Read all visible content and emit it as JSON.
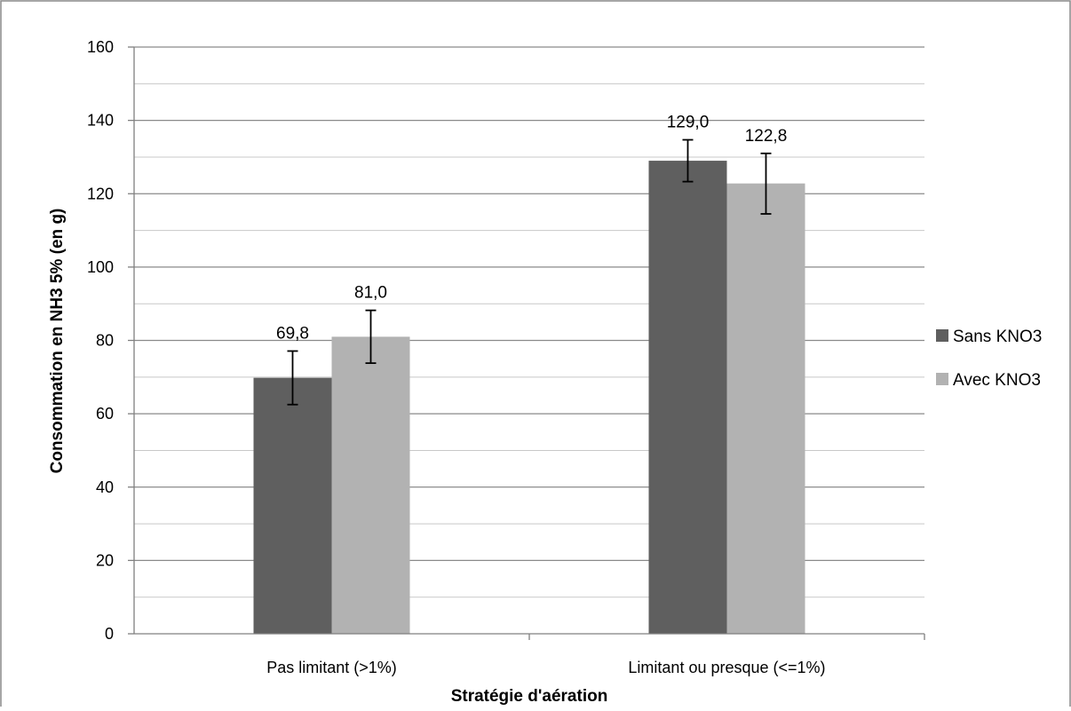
{
  "chart_data": {
    "type": "bar",
    "title": "",
    "xlabel": "Stratégie d'aération",
    "ylabel": "Consommation en NH3 5% (en g)",
    "categories": [
      "Pas limitant (>1%)",
      "Limitant ou presque (<=1%)"
    ],
    "series": [
      {
        "name": "Sans KNO3",
        "color": "#5f5f5f",
        "values": [
          69.8,
          129.0
        ],
        "value_labels": [
          "69,8",
          "129,0"
        ],
        "error_low": [
          62.5,
          123.3
        ],
        "error_high": [
          77.1,
          134.7
        ]
      },
      {
        "name": "Avec KNO3",
        "color": "#b2b2b2",
        "values": [
          81.0,
          122.8
        ],
        "value_labels": [
          "81,0",
          "122,8"
        ],
        "error_low": [
          73.8,
          114.5
        ],
        "error_high": [
          88.2,
          131.0
        ]
      }
    ],
    "ylim": [
      0,
      160
    ],
    "yticks": [
      0,
      20,
      40,
      60,
      80,
      100,
      120,
      140,
      160
    ],
    "ytick_labels": [
      "0",
      "20",
      "40",
      "60",
      "80",
      "100",
      "120",
      "140",
      "160"
    ],
    "minor_gridlines_every": 10,
    "grid": true,
    "legend_position": "right"
  }
}
